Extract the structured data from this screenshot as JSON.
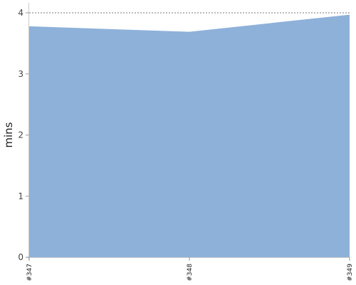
{
  "chart_data": {
    "type": "area",
    "categories": [
      "#347",
      "#348",
      "#349"
    ],
    "series": [
      {
        "values": [
          3.78,
          3.69,
          3.97
        ],
        "color": "#8eb1d9"
      }
    ],
    "title": "",
    "xlabel": "",
    "ylabel": "mins",
    "ylim": [
      0,
      4
    ],
    "yticks": [
      0,
      1,
      2,
      3,
      4
    ],
    "grid": true,
    "legend": "none"
  }
}
